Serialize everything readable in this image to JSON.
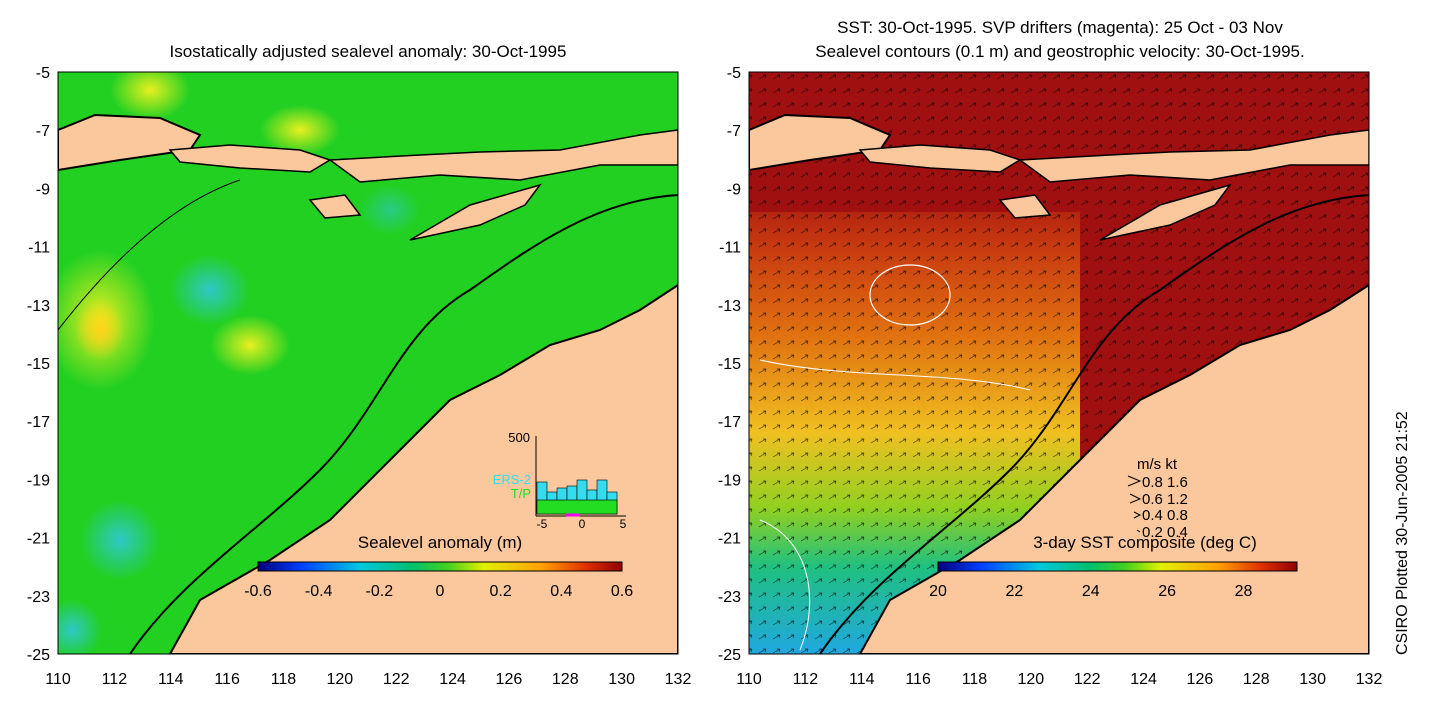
{
  "left_panel": {
    "title": "Isostatically adjusted sealevel anomaly: 30-Oct-1995",
    "colorbar_label": "Sealevel anomaly (m)",
    "colorbar_ticks": [
      "-0.6",
      "-0.4",
      "-0.2",
      "0",
      "0.2",
      "0.4",
      "0.6"
    ],
    "histogram": {
      "ymax_label": "500",
      "series": [
        "ERS-2",
        "T/P"
      ],
      "x_ticks": [
        "-5",
        "0",
        "5"
      ],
      "colors": {
        "ERS-2": "#33ddee",
        "T/P": "#22dd22"
      }
    }
  },
  "right_panel": {
    "title_line1": "SST: 30-Oct-1995. SVP drifters (magenta): 25 Oct - 03 Nov",
    "title_line2": "Sealevel contours (0.1 m) and geostrophic velocity: 30-Oct-1995.",
    "colorbar_label": "3-day SST composite (deg C)",
    "colorbar_ticks": [
      "20",
      "22",
      "24",
      "26",
      "28"
    ],
    "velocity_legend": {
      "header": "m/s  kt",
      "rows": [
        "0.8  1.6",
        "0.6  1.2",
        "0.4  0.8",
        "0.2  0.4"
      ]
    }
  },
  "axes": {
    "y_ticks": [
      "-5",
      "-7",
      "-9",
      "-11",
      "-13",
      "-15",
      "-17",
      "-19",
      "-21",
      "-23",
      "-25"
    ],
    "x_ticks": [
      "110",
      "112",
      "114",
      "116",
      "118",
      "120",
      "122",
      "124",
      "126",
      "128",
      "130",
      "132"
    ]
  },
  "credit": "CSIRO Plotted 30-Jun-2005 21:52",
  "colors": {
    "land": "#fbc79c",
    "ocean_sla": "#22d022",
    "sst_warm": "#a01010"
  }
}
